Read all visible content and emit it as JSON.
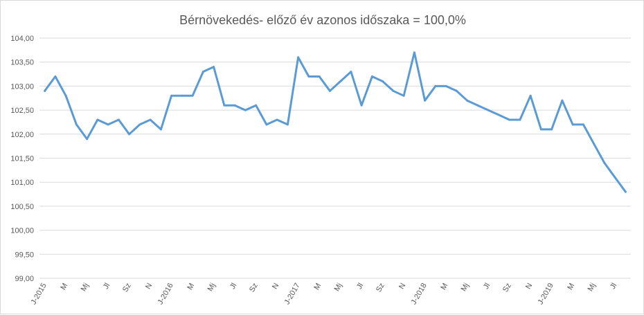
{
  "chart_data": {
    "type": "line",
    "title": "Bérnövekedés- előző év azonos időszaka = 100,0%",
    "xlabel": "",
    "ylabel": "",
    "ylim": [
      99,
      104
    ],
    "yticks": [
      "99,00",
      "99,50",
      "100,00",
      "100,50",
      "101,00",
      "101,50",
      "102,00",
      "102,50",
      "103,00",
      "103,50",
      "104,00"
    ],
    "grid": true,
    "legend": "none",
    "x": [
      "2015-01",
      "2015-02",
      "2015-03",
      "2015-04",
      "2015-05",
      "2015-06",
      "2015-07",
      "2015-08",
      "2015-09",
      "2015-10",
      "2015-11",
      "2015-12",
      "2016-01",
      "2016-02",
      "2016-03",
      "2016-04",
      "2016-05",
      "2016-06",
      "2016-07",
      "2016-08",
      "2016-09",
      "2016-10",
      "2016-11",
      "2016-12",
      "2017-01",
      "2017-02",
      "2017-03",
      "2017-04",
      "2017-05",
      "2017-06",
      "2017-07",
      "2017-08",
      "2017-09",
      "2017-10",
      "2017-11",
      "2017-12",
      "2018-01",
      "2018-02",
      "2018-03",
      "2018-04",
      "2018-05",
      "2018-06",
      "2018-07",
      "2018-08",
      "2018-09",
      "2018-10",
      "2018-11",
      "2018-12",
      "2019-01",
      "2019-02",
      "2019-03",
      "2019-04",
      "2019-05",
      "2019-06",
      "2019-07",
      "2019-08"
    ],
    "x_tick_labels": [
      {
        "index": 0,
        "label": "J-2015"
      },
      {
        "index": 2,
        "label": "M"
      },
      {
        "index": 4,
        "label": "Mj"
      },
      {
        "index": 6,
        "label": "Jl"
      },
      {
        "index": 8,
        "label": "Sz"
      },
      {
        "index": 10,
        "label": "N"
      },
      {
        "index": 12,
        "label": "J-2016"
      },
      {
        "index": 14,
        "label": "M"
      },
      {
        "index": 16,
        "label": "Mj"
      },
      {
        "index": 18,
        "label": "Jl"
      },
      {
        "index": 20,
        "label": "Sz"
      },
      {
        "index": 22,
        "label": "N"
      },
      {
        "index": 24,
        "label": "J-2017"
      },
      {
        "index": 26,
        "label": "M"
      },
      {
        "index": 28,
        "label": "Mj"
      },
      {
        "index": 30,
        "label": "Jl"
      },
      {
        "index": 32,
        "label": "Sz"
      },
      {
        "index": 34,
        "label": "N"
      },
      {
        "index": 36,
        "label": "J-2018"
      },
      {
        "index": 38,
        "label": "M"
      },
      {
        "index": 40,
        "label": "Mj"
      },
      {
        "index": 42,
        "label": "Jl"
      },
      {
        "index": 44,
        "label": "Sz"
      },
      {
        "index": 46,
        "label": "N"
      },
      {
        "index": 48,
        "label": "J-2019"
      },
      {
        "index": 50,
        "label": "M"
      },
      {
        "index": 52,
        "label": "Mj"
      },
      {
        "index": 54,
        "label": "Jl"
      }
    ],
    "series": [
      {
        "color": "#5b9bd5",
        "values": [
          102.9,
          103.2,
          102.8,
          102.2,
          101.9,
          102.3,
          102.2,
          102.3,
          102.0,
          102.2,
          102.3,
          102.1,
          102.8,
          102.8,
          102.8,
          103.3,
          103.4,
          102.6,
          102.6,
          102.5,
          102.6,
          102.2,
          102.3,
          102.2,
          103.6,
          103.2,
          103.2,
          102.9,
          103.1,
          103.3,
          102.6,
          103.2,
          103.1,
          102.9,
          102.8,
          103.7,
          102.7,
          103.0,
          103.0,
          102.9,
          102.7,
          102.6,
          102.5,
          102.4,
          102.3,
          102.3,
          102.8,
          102.1,
          102.1,
          102.7,
          102.2,
          102.2,
          101.8,
          101.4,
          101.1,
          100.8
        ]
      }
    ]
  }
}
